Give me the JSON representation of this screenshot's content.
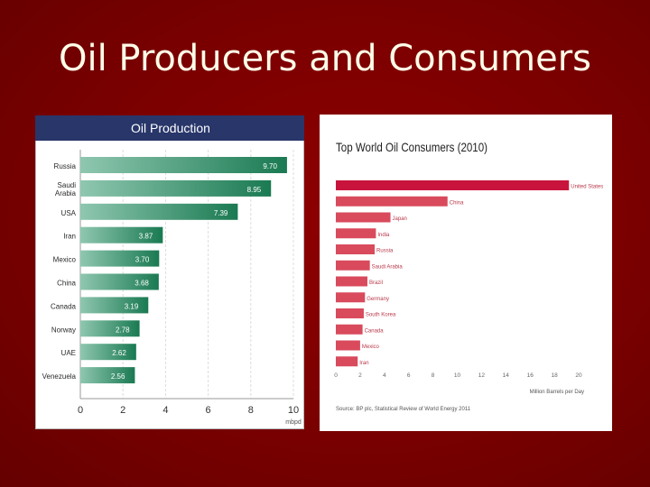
{
  "slide": {
    "title": "Oil Producers and Consumers"
  },
  "chart_data": [
    {
      "type": "bar",
      "orientation": "horizontal",
      "title": "Oil Production",
      "xlabel": "mbpd",
      "ylabel": "",
      "categories": [
        "Russia",
        "Saudi Arabia",
        "USA",
        "Iran",
        "Mexico",
        "China",
        "Canada",
        "Norway",
        "UAE",
        "Venezuela"
      ],
      "values": [
        9.7,
        8.95,
        7.39,
        3.87,
        3.7,
        3.68,
        3.19,
        2.78,
        2.62,
        2.56
      ],
      "value_labels": [
        "9.70",
        "8.95",
        "7.39",
        "3.87",
        "3.70",
        "3.68",
        "3.19",
        "2.78",
        "2.62",
        "2.56"
      ],
      "xticks": [
        "0",
        "2",
        "4",
        "6",
        "8",
        "10"
      ],
      "xlim": [
        0,
        10
      ],
      "grid": true,
      "colors": {
        "bar_start": "#7ab8a0",
        "bar_end": "#1a7a52",
        "header": "#28366a"
      }
    },
    {
      "type": "bar",
      "orientation": "horizontal",
      "title": "Top World Oil Consumers (2010)",
      "xlabel": "Million Barrels per Day",
      "ylabel": "",
      "categories": [
        "United States",
        "China",
        "Japan",
        "India",
        "Russia",
        "Saudi Arabia",
        "Brazil",
        "Germany",
        "South Korea",
        "Canada",
        "Mexico",
        "Iran"
      ],
      "values": [
        19.2,
        9.2,
        4.5,
        3.3,
        3.2,
        2.8,
        2.6,
        2.4,
        2.3,
        2.2,
        2.0,
        1.8
      ],
      "xticks": [
        "0",
        "2",
        "4",
        "6",
        "8",
        "10",
        "12",
        "14",
        "16",
        "18",
        "20"
      ],
      "xlim": [
        0,
        20
      ],
      "source": "Source: BP plc, Statistical Review of World Energy 2011",
      "grid": false,
      "colors": {
        "highlight": "#c8143c",
        "bar": "#d94a5c"
      }
    }
  ]
}
